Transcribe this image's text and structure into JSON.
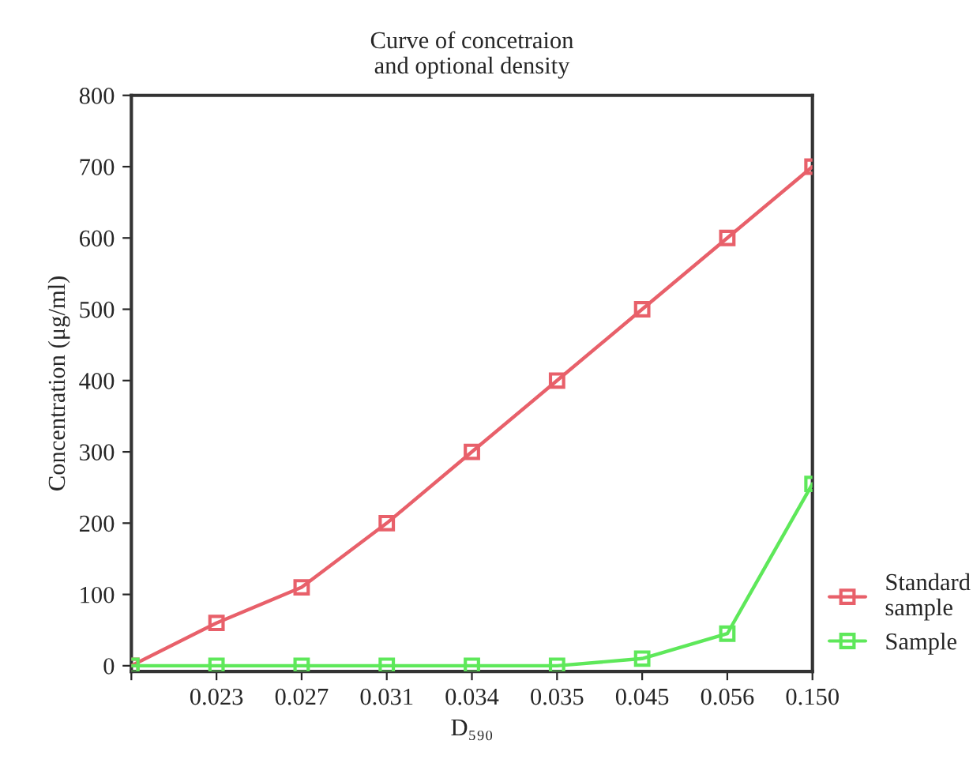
{
  "chart_data": {
    "type": "line",
    "title": "Curve of concetraion\nand optional density",
    "xlabel": "D₅₉₀",
    "ylabel": "Concentration (μg/ml)",
    "categories": [
      null,
      "0.023",
      "0.027",
      "0.031",
      "0.034",
      "0.035",
      "0.045",
      "0.056",
      "0.150"
    ],
    "series": [
      {
        "name": "Standard\nsample",
        "color": "#e8606a",
        "values": [
          0,
          60,
          110,
          200,
          300,
          400,
          500,
          600,
          700
        ]
      },
      {
        "name": "Sample",
        "color": "#5ee85a",
        "values": [
          0,
          0,
          0,
          0,
          0,
          0,
          10,
          45,
          255
        ]
      }
    ],
    "ylim": [
      -8,
      800
    ],
    "yticks": [
      0,
      100,
      200,
      300,
      400,
      500,
      600,
      700,
      800
    ],
    "grid": false,
    "legend": "bottom right",
    "marker": "square",
    "line_style": "solid"
  }
}
